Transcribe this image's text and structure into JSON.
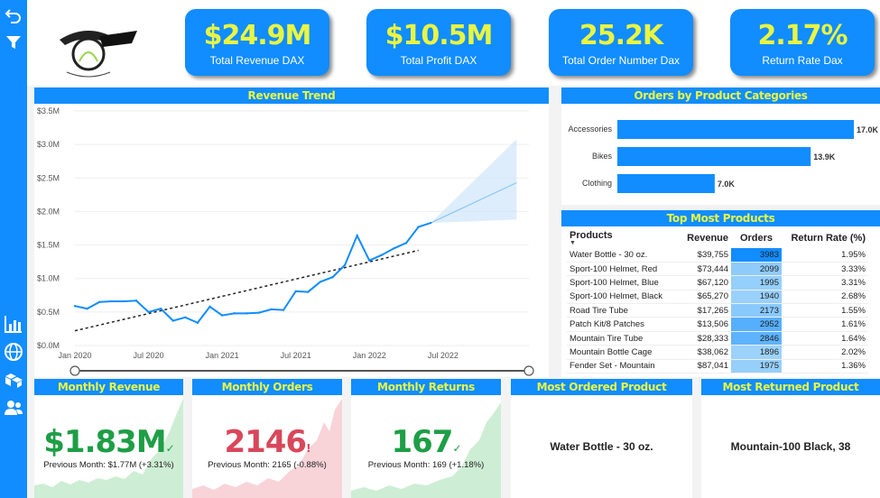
{
  "kpis": [
    {
      "value": "$24.9M",
      "label": "Total Revenue DAX"
    },
    {
      "value": "$10.5M",
      "label": "Total Profit DAX"
    },
    {
      "value": "25.2K",
      "label": "Total Order Number Dax"
    },
    {
      "value": "2.17%",
      "label": "Return Rate Dax"
    }
  ],
  "logo": {
    "brand": "STEELECHT",
    "tagline": "AND YOUR BIKE"
  },
  "sidebar_icons": [
    "undo-icon",
    "filter-icon",
    "bar-chart-icon",
    "globe-icon",
    "boxes-icon",
    "users-icon"
  ],
  "colors": {
    "accent": "#118dff",
    "title_text": "#e9f542",
    "green": "#1e9e46",
    "red": "#d9475a"
  },
  "revenue_trend": {
    "title": "Revenue Trend",
    "chart_data": {
      "type": "line",
      "title": "Revenue Trend",
      "y_ticks": [
        "$3.5M",
        "$3.0M",
        "$2.5M",
        "$2.0M",
        "$1.5M",
        "$1.0M",
        "$0.5M",
        "$0.0M"
      ],
      "x_ticks": [
        "Jan 2020",
        "Jul 2020",
        "Jan 2021",
        "Jul 2021",
        "Jan 2022",
        "Jul 2022"
      ],
      "ylim": [
        0,
        3500000
      ],
      "series": [
        {
          "x": [
            "2020-01",
            "2020-02",
            "2020-03",
            "2020-04",
            "2020-05",
            "2020-06",
            "2020-07",
            "2020-08",
            "2020-09",
            "2020-10",
            "2020-11",
            "2020-12",
            "2021-01",
            "2021-02",
            "2021-03",
            "2021-04",
            "2021-05",
            "2021-06",
            "2021-07",
            "2021-08",
            "2021-09",
            "2021-10",
            "2021-11",
            "2021-12",
            "2022-01",
            "2022-02",
            "2022-03",
            "2022-04",
            "2022-05",
            "2022-06"
          ],
          "values": [
            590000,
            550000,
            650000,
            660000,
            660000,
            670000,
            500000,
            550000,
            370000,
            420000,
            340000,
            580000,
            450000,
            480000,
            480000,
            490000,
            540000,
            530000,
            810000,
            800000,
            950000,
            1020000,
            1200000,
            1640000,
            1270000,
            1350000,
            1450000,
            1530000,
            1770000,
            1830000
          ]
        }
      ],
      "trendline": {
        "start": [
          "2020-01",
          220000
        ],
        "end": [
          "2022-05",
          1420000
        ]
      },
      "forecast": {
        "x": [
          "2022-06",
          "2023-01"
        ],
        "values": [
          1830000,
          2430000
        ],
        "upper": [
          1830000,
          3080000
        ],
        "lower": [
          1830000,
          1880000
        ]
      }
    }
  },
  "orders_by_category": {
    "title": "Orders by Product Categories",
    "chart_data": {
      "type": "bar",
      "categories": [
        "Accessories",
        "Bikes",
        "Clothing"
      ],
      "values": [
        17000,
        13900,
        7000
      ],
      "labels": [
        "17.0K",
        "13.9K",
        "7.0K"
      ]
    }
  },
  "top_products": {
    "title": "Top Most Products",
    "headers": [
      "Products",
      "Revenue",
      "Orders",
      "Return Rate (%)"
    ],
    "rows": [
      {
        "product": "Water Bottle - 30 oz.",
        "revenue": "$39,755",
        "orders": "3983",
        "orders_n": 3983,
        "rate": "1.95%"
      },
      {
        "product": "Sport-100 Helmet, Red",
        "revenue": "$73,444",
        "orders": "2099",
        "orders_n": 2099,
        "rate": "3.33%"
      },
      {
        "product": "Sport-100 Helmet, Blue",
        "revenue": "$67,120",
        "orders": "1995",
        "orders_n": 1995,
        "rate": "3.31%"
      },
      {
        "product": "Sport-100 Helmet, Black",
        "revenue": "$65,270",
        "orders": "1940",
        "orders_n": 1940,
        "rate": "2.68%"
      },
      {
        "product": "Road Tire Tube",
        "revenue": "$17,265",
        "orders": "2173",
        "orders_n": 2173,
        "rate": "1.55%"
      },
      {
        "product": "Patch Kit/8 Patches",
        "revenue": "$13,506",
        "orders": "2952",
        "orders_n": 2952,
        "rate": "1.61%"
      },
      {
        "product": "Mountain Tire Tube",
        "revenue": "$28,333",
        "orders": "2846",
        "orders_n": 2846,
        "rate": "1.64%"
      },
      {
        "product": "Mountain Bottle Cage",
        "revenue": "$38,062",
        "orders": "1896",
        "orders_n": 1896,
        "rate": "2.02%"
      },
      {
        "product": "Fender Set - Mountain",
        "revenue": "$87,041",
        "orders": "1975",
        "orders_n": 1975,
        "rate": "1.36%"
      }
    ]
  },
  "monthly_revenue": {
    "title": "Monthly Revenue",
    "value": "$1.83M",
    "mark": "✓",
    "sub": "Previous Month: $1.77M (+3.31%)",
    "color": "#1e9e46"
  },
  "monthly_orders": {
    "title": "Monthly Orders",
    "value": "2146",
    "mark": "!",
    "sub": "Previous Month: 2165 (-0.88%)",
    "color": "#d9475a"
  },
  "monthly_returns": {
    "title": "Monthly Returns",
    "value": "167",
    "mark": "✓",
    "sub": "Previous Month: 169 (+1.18%)",
    "color": "#1e9e46"
  },
  "most_ordered": {
    "title": "Most Ordered Product",
    "value": "Water Bottle - 30 oz."
  },
  "most_returned": {
    "title": "Most Returned Product",
    "value": "Mountain-100 Black, 38"
  }
}
